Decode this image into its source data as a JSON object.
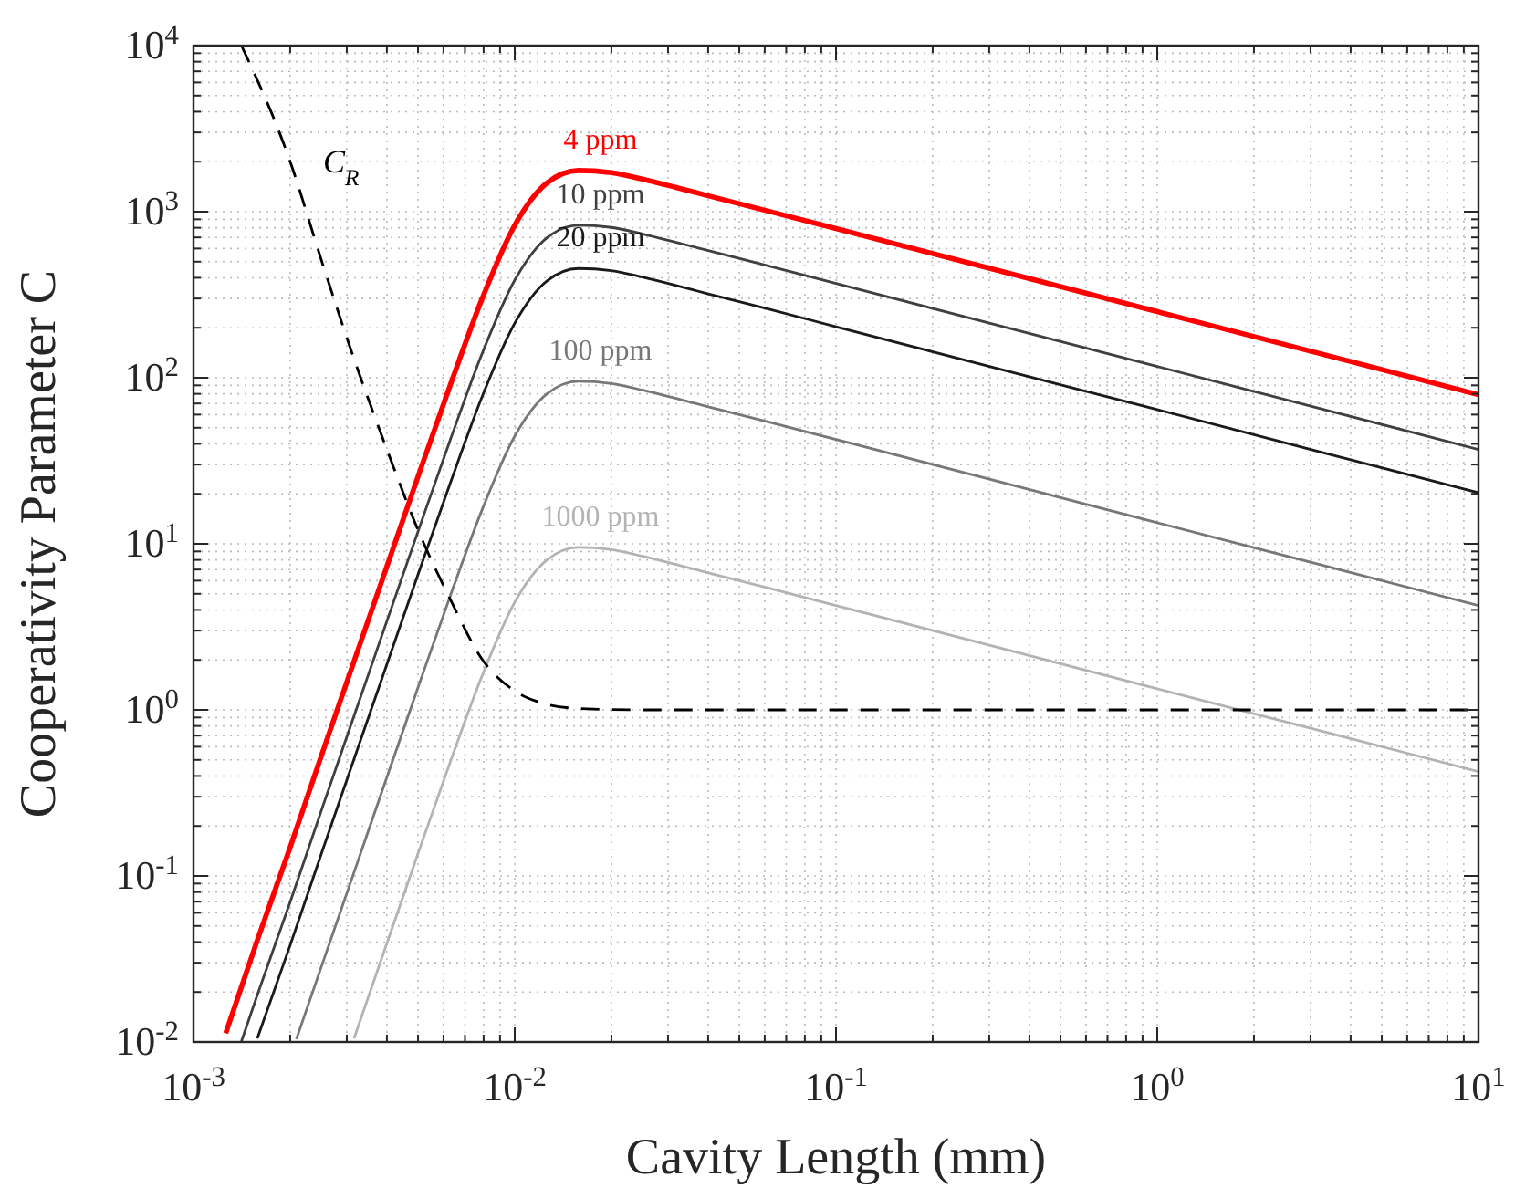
{
  "chart_data": {
    "type": "line",
    "xlabel": "Cavity Length (mm)",
    "ylabel": "Cooperativity Parameter C",
    "log": "xy",
    "grid": true,
    "xlim": [
      0.001,
      10
    ],
    "ylim": [
      0.01,
      10000
    ],
    "xticks": [
      {
        "value": 0.001,
        "label": "10$^{-3}$"
      },
      {
        "value": 0.01,
        "label": "10$^{-2}$"
      },
      {
        "value": 0.1,
        "label": "10$^{-1}$"
      },
      {
        "value": 1,
        "label": "10$^{0}$"
      },
      {
        "value": 10,
        "label": "10$^{1}$"
      }
    ],
    "yticks": [
      {
        "value": 0.01,
        "label": "10$^{-2}$"
      },
      {
        "value": 0.1,
        "label": "10$^{-1}$"
      },
      {
        "value": 1,
        "label": "10$^{0}$"
      },
      {
        "value": 10,
        "label": "10$^{1}$"
      },
      {
        "value": 100,
        "label": "10$^{2}$"
      },
      {
        "value": 1000,
        "label": "10$^{3}$"
      },
      {
        "value": 10000,
        "label": "10$^{4}$"
      }
    ],
    "series": [
      {
        "name": "4 ppm",
        "color": "#ff0000",
        "line_style": "solid",
        "x": [
          0.00126,
          0.00158,
          0.002,
          0.00251,
          0.00316,
          0.00398,
          0.00501,
          0.00631,
          0.00794,
          0.01,
          0.0126,
          0.0158,
          0.02,
          0.0251,
          0.0316,
          0.0398,
          0.0631,
          0.1,
          0.316,
          1,
          3.16,
          10
        ],
        "values": [
          0.0113,
          0.041,
          0.149,
          0.541,
          1.96,
          7.11,
          25.7,
          91.2,
          304,
          828,
          1489,
          1770,
          1718,
          1567,
          1403,
          1250,
          995,
          791,
          445,
          250,
          141,
          79.1
        ]
      },
      {
        "name": "10 ppm",
        "color": "#404040",
        "line_style": "solid",
        "x": [
          0.00141,
          0.00158,
          0.002,
          0.00251,
          0.00316,
          0.00398,
          0.00501,
          0.00631,
          0.00794,
          0.01,
          0.0126,
          0.0158,
          0.02,
          0.0251,
          0.0316,
          0.0398,
          0.0631,
          0.1,
          0.316,
          1,
          3.16,
          10
        ],
        "values": [
          0.0101,
          0.0192,
          0.0697,
          0.253,
          0.918,
          3.33,
          12,
          42.7,
          142,
          387,
          697,
          828,
          804,
          733,
          656,
          585,
          466,
          370,
          208,
          117,
          65.8,
          37
        ]
      },
      {
        "name": "20 ppm",
        "color": "#1a1a1a",
        "line_style": "solid",
        "x": [
          0.00158,
          0.002,
          0.00251,
          0.00316,
          0.00398,
          0.00501,
          0.00631,
          0.00794,
          0.01,
          0.0126,
          0.0158,
          0.02,
          0.0251,
          0.0316,
          0.0398,
          0.0631,
          0.1,
          0.316,
          1,
          3.16,
          10
        ],
        "values": [
          0.0105,
          0.0383,
          0.139,
          0.505,
          1.83,
          6.61,
          23.4,
          78.2,
          213,
          383,
          455,
          442,
          403,
          361,
          321,
          256,
          203,
          114,
          64.3,
          36.1,
          20.3
        ]
      },
      {
        "name": "100 ppm",
        "color": "#777777",
        "line_style": "solid",
        "x": [
          0.00209,
          0.00251,
          0.00316,
          0.00398,
          0.00501,
          0.00631,
          0.00794,
          0.01,
          0.0126,
          0.0158,
          0.02,
          0.0251,
          0.0316,
          0.0398,
          0.0631,
          0.1,
          0.316,
          1,
          3.16,
          10
        ],
        "values": [
          0.0104,
          0.029,
          0.105,
          0.382,
          1.38,
          4.9,
          16.3,
          44.5,
          80,
          95.1,
          92.3,
          84.1,
          75.3,
          67.1,
          53.5,
          42.5,
          23.9,
          13.4,
          7.55,
          4.25
        ]
      },
      {
        "name": "1000 ppm",
        "color": "#b3b3b3",
        "line_style": "solid",
        "x": [
          0.00316,
          0.00398,
          0.00501,
          0.00631,
          0.00794,
          0.01,
          0.0126,
          0.0158,
          0.02,
          0.0251,
          0.0316,
          0.0398,
          0.0631,
          0.1,
          0.316,
          1,
          3.16,
          10
        ],
        "values": [
          0.0105,
          0.0382,
          0.138,
          0.49,
          1.63,
          4.45,
          8,
          9.51,
          9.23,
          8.41,
          7.53,
          6.71,
          5.35,
          4.25,
          2.39,
          1.34,
          0.755,
          0.425
        ]
      },
      {
        "name": "C$_{R}$",
        "color": "#000000",
        "line_style": "dashed",
        "x": [
          0.00141,
          0.002,
          0.00251,
          0.00316,
          0.00398,
          0.00501,
          0.00631,
          0.00794,
          0.01,
          0.0126,
          0.0158,
          0.0251,
          10
        ],
        "values": [
          10000,
          2000,
          500,
          130,
          38,
          12,
          4.6,
          2,
          1.3,
          1.08,
          1.02,
          1,
          1
        ]
      }
    ]
  }
}
